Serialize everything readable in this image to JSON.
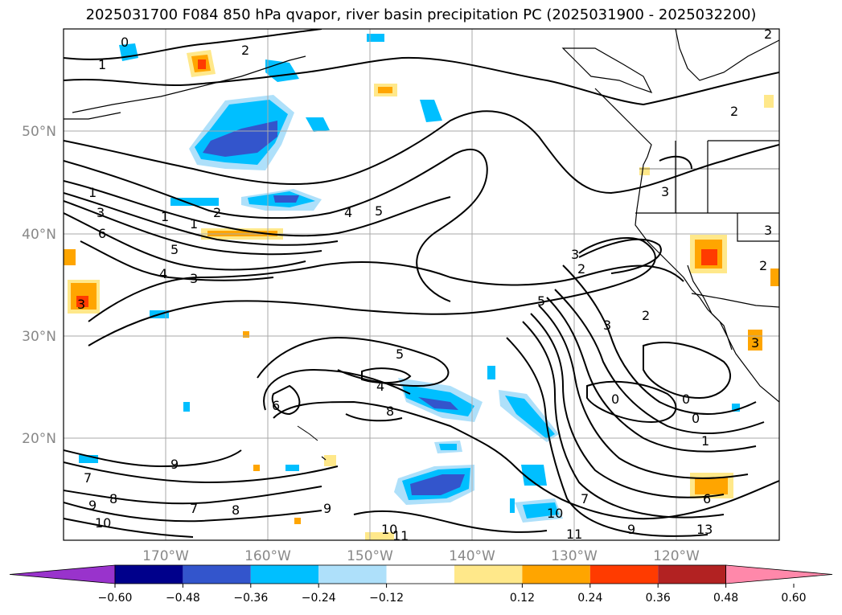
{
  "title": "2025031700 F084 850 hPa qvapor, river basin precipitation PC (2025031900 - 2025032200)",
  "lat_labels": [
    "50°N",
    "40°N",
    "30°N",
    "20°N"
  ],
  "lon_labels": [
    "170°W",
    "160°W",
    "150°W",
    "140°W",
    "130°W",
    "120°W"
  ],
  "colorbar": {
    "ticks": [
      "−0.60",
      "−0.48",
      "−0.36",
      "−0.24",
      "−0.12",
      "0.12",
      "0.24",
      "0.36",
      "0.48",
      "0.60"
    ],
    "colors": [
      "#9933cc",
      "#00008b",
      "#3355cc",
      "#00bfff",
      "#aee0fa",
      "#ffffff",
      "#ffe88a",
      "#ffa500",
      "#ff3b00",
      "#b22222",
      "#ff88aa"
    ]
  },
  "contour_labels": [
    "0",
    "1",
    "2",
    "2",
    "1",
    "1",
    "1",
    "2",
    "3",
    "6",
    "5",
    "4",
    "3",
    "4",
    "5",
    "5",
    "4",
    "8",
    "6",
    "9",
    "7",
    "8",
    "9",
    "7",
    "9",
    "8",
    "10",
    "10",
    "10",
    "11",
    "11",
    "9",
    "13",
    "6",
    "7",
    "1",
    "0",
    "0",
    "0",
    "2",
    "3",
    "3",
    "5",
    "3",
    "2",
    "2",
    "3",
    "3",
    "3",
    "2"
  ]
}
